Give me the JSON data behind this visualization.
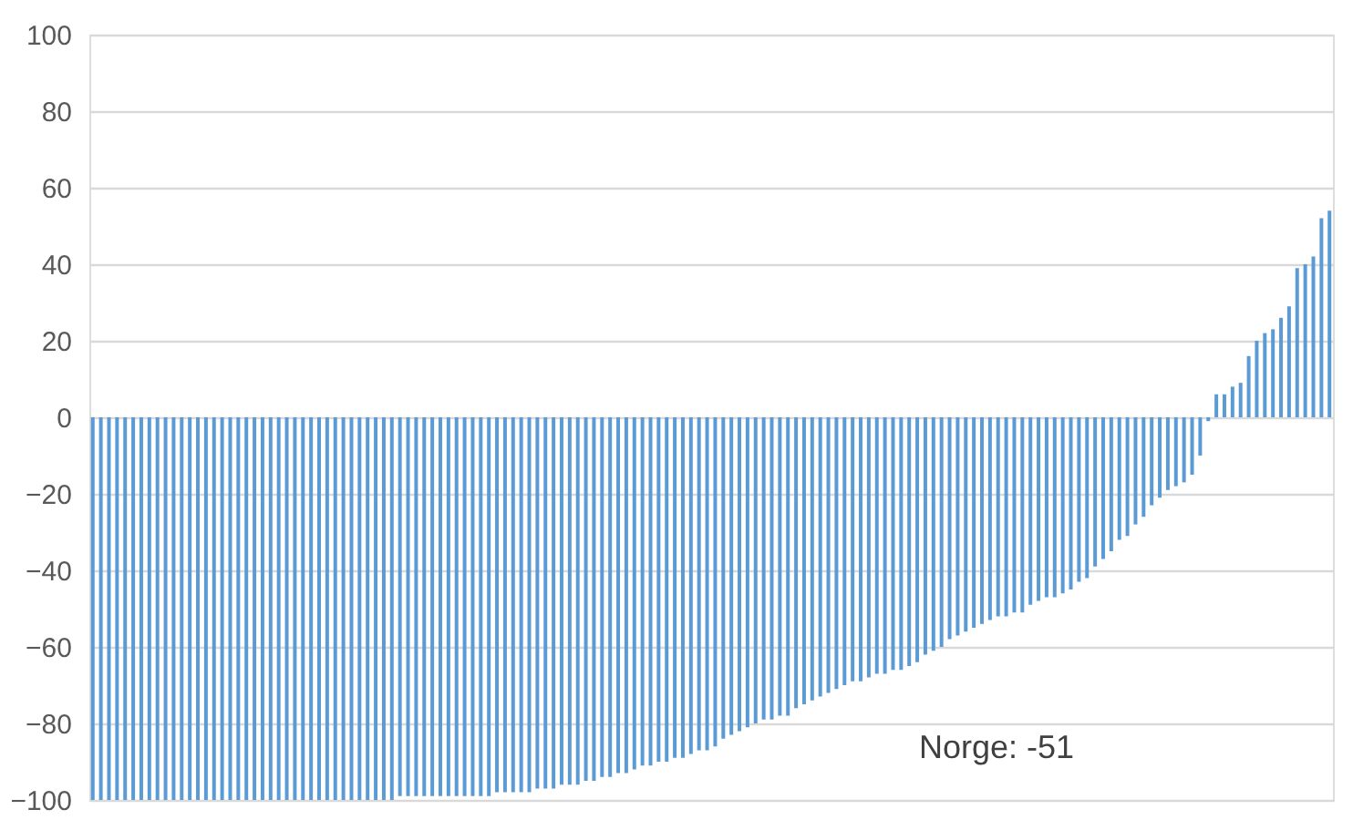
{
  "chart_data": {
    "type": "bar",
    "categories": [
      null,
      null,
      null,
      null,
      null,
      null,
      null,
      null,
      null,
      null,
      null,
      null,
      null,
      null,
      null,
      null,
      null,
      null,
      null,
      null,
      null,
      null,
      null,
      null,
      null,
      null,
      null,
      null,
      null,
      null,
      null,
      null,
      null,
      null,
      null,
      null,
      null,
      null,
      null,
      null,
      null,
      null,
      null,
      null,
      null,
      null,
      null,
      null,
      null,
      null,
      null,
      null,
      null,
      null,
      null,
      null,
      null,
      null,
      null,
      null,
      null,
      null,
      null,
      null,
      null,
      null,
      null,
      null,
      null,
      null,
      null,
      null,
      null,
      null,
      null,
      null,
      null,
      null,
      null,
      null,
      null,
      null,
      null,
      null,
      null,
      null,
      null,
      null,
      null,
      null,
      null,
      null,
      null,
      null,
      null,
      null,
      null,
      null,
      null,
      null,
      null,
      null,
      null,
      null,
      null,
      null,
      null,
      null,
      null,
      null,
      null,
      null,
      null,
      null,
      null,
      null,
      null,
      null,
      null,
      null,
      null,
      null,
      null,
      null,
      null,
      null,
      null,
      null,
      null,
      null,
      null,
      null,
      null,
      null,
      null,
      null,
      null,
      null,
      null,
      null,
      null,
      null,
      null,
      null,
      null,
      null,
      null,
      null,
      null,
      null,
      null,
      null,
      null,
      null
    ],
    "values": [
      -100,
      -100,
      -100,
      -100,
      -100,
      -100,
      -100,
      -100,
      -100,
      -100,
      -100,
      -100,
      -100,
      -100,
      -100,
      -100,
      -100,
      -100,
      -100,
      -100,
      -100,
      -100,
      -100,
      -100,
      -100,
      -100,
      -100,
      -100,
      -100,
      -100,
      -100,
      -100,
      -100,
      -100,
      -100,
      -100,
      -100,
      -100,
      -99,
      -99,
      -99,
      -99,
      -99,
      -99,
      -99,
      -99,
      -99,
      -99,
      -99,
      -99,
      -98,
      -98,
      -98,
      -98,
      -98,
      -97,
      -97,
      -97,
      -96,
      -96,
      -96,
      -95,
      -95,
      -94,
      -94,
      -93,
      -93,
      -92,
      -91,
      -91,
      -90,
      -90,
      -89,
      -89,
      -88,
      -87,
      -87,
      -86,
      -84,
      -83,
      -82,
      -81,
      -80,
      -79,
      -79,
      -78,
      -78,
      -76,
      -75,
      -74,
      -73,
      -72,
      -71,
      -70,
      -69,
      -69,
      -68,
      -67,
      -67,
      -66,
      -66,
      -65,
      -64,
      -62,
      -61,
      -60,
      -58,
      -57,
      -56,
      -55,
      -54,
      -53,
      -52,
      -52,
      -51,
      -51,
      -49,
      -48,
      -47,
      -47,
      -46,
      -45,
      -43,
      -42,
      -39,
      -37,
      -35,
      -32,
      -31,
      -28,
      -26,
      -23,
      -21,
      -19,
      -18,
      -17,
      -15,
      -10,
      -1,
      6,
      6,
      8,
      9,
      16,
      20,
      22,
      23,
      26,
      29,
      39,
      40,
      42,
      52,
      54
    ],
    "color": "#5b9bd5",
    "ylim": [
      -100,
      100
    ],
    "yticks": [
      -100,
      -80,
      -60,
      -40,
      -20,
      0,
      20,
      40,
      60,
      80,
      100
    ],
    "grid": "y",
    "tick_labels": "y",
    "annotations": [
      "Norge: -51"
    ]
  }
}
